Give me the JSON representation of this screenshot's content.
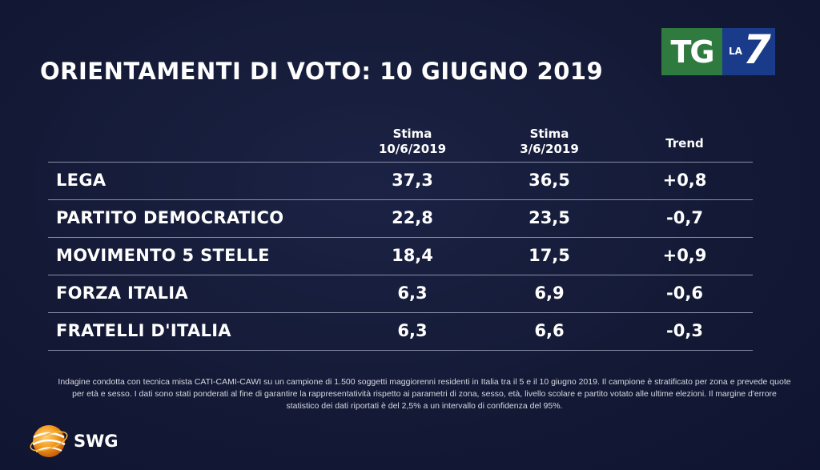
{
  "title": "ORIENTAMENTI DI VOTO: 10 GIUGNO 2019",
  "broadcaster": {
    "tg": "TG",
    "la": "LA",
    "seven": "7"
  },
  "colors": {
    "background": "#141a36",
    "tg_green": "#2f7a3f",
    "la7_blue": "#1a3a8a",
    "rule": "#8a8fa8"
  },
  "chart_data": {
    "type": "table",
    "columns": [
      {
        "line1": "Stima",
        "line2": "10/6/2019"
      },
      {
        "line1": "Stima",
        "line2": "3/6/2019"
      },
      {
        "line1": "Trend",
        "line2": ""
      }
    ],
    "rows": [
      {
        "party": "LEGA",
        "current": "37,3",
        "previous": "36,5",
        "trend": "+0,8"
      },
      {
        "party": "PARTITO DEMOCRATICO",
        "current": "22,8",
        "previous": "23,5",
        "trend": "-0,7"
      },
      {
        "party": "MOVIMENTO 5 STELLE",
        "current": "18,4",
        "previous": "17,5",
        "trend": "+0,9"
      },
      {
        "party": "FORZA ITALIA",
        "current": "6,3",
        "previous": "6,9",
        "trend": "-0,6"
      },
      {
        "party": "FRATELLI D'ITALIA",
        "current": "6,3",
        "previous": "6,6",
        "trend": "-0,3"
      }
    ]
  },
  "footnote": "Indagine condotta con tecnica mista CATI-CAMI-CAWI su un campione di 1.500 soggetti maggiorenni residenti in Italia tra il 5 e il 10 giugno 2019. Il campione è stratificato per zona e prevede quote per età e sesso. I dati sono stati ponderati al fine di garantire la rappresentatività rispetto ai parametri di zona, sesso, età, livello scolare e partito votato alle ultime elezioni. Il margine d'errore statistico dei dati riportati è del 2,5% a un intervallo di confidenza del 95%.",
  "pollster": "SWG"
}
